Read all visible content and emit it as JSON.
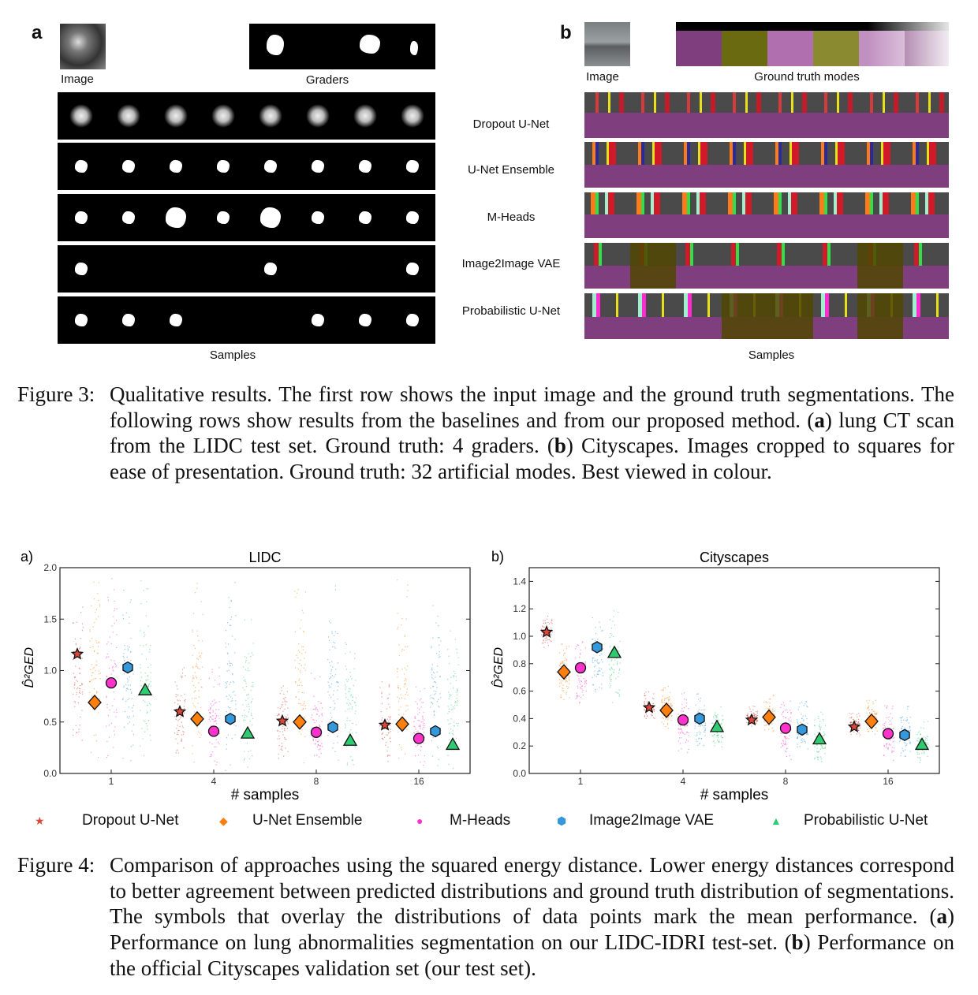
{
  "figure3": {
    "panel_a": {
      "letter": "a",
      "image_label": "Image",
      "graders_label": "Graders",
      "samples_label": "Samples"
    },
    "panel_b": {
      "letter": "b",
      "image_label": "Image",
      "gt_label": "Ground truth modes",
      "samples_label": "Samples"
    },
    "row_labels": [
      "Dropout  U-Net",
      "U-Net Ensemble",
      "M-Heads",
      "Image2Image VAE",
      "Probabilistic U-Net"
    ],
    "caption": {
      "label": "Figure 3:",
      "segments": [
        {
          "t": "Qualitative results. The first row shows the input image and the ground truth segmentations. The following rows show results from the baselines and from our proposed method. ("
        },
        {
          "t": "a",
          "b": true
        },
        {
          "t": ") lung CT scan from the LIDC test set. Ground truth: 4 graders. ("
        },
        {
          "t": "b",
          "b": true
        },
        {
          "t": ") Cityscapes. Images cropped to squares for ease of presentation. Ground truth: 32 artificial modes. Best viewed in colour."
        }
      ]
    }
  },
  "figure4": {
    "legend": [
      {
        "label": "Dropout U-Net",
        "color": "#d9463b",
        "marker": "star"
      },
      {
        "label": "U-Net Ensemble",
        "color": "#ff7f0e",
        "marker": "diamond"
      },
      {
        "label": "M-Heads",
        "color": "#ff33cc",
        "marker": "circle"
      },
      {
        "label": "Image2Image VAE",
        "color": "#3498db",
        "marker": "hexagon"
      },
      {
        "label": "Probabilistic U-Net",
        "color": "#2ecc71",
        "marker": "triangle"
      }
    ],
    "caption": {
      "label": "Figure 4:",
      "segments": [
        {
          "t": "Comparison of approaches using the squared energy distance. Lower energy distances correspond to better agreement between predicted distributions and ground truth distribution of segmentations. The symbols that overlay the distributions of data points mark the mean performance. ("
        },
        {
          "t": "a",
          "b": true
        },
        {
          "t": ") Performance on lung abnormalities segmentation on our LIDC-IDRI test-set. ("
        },
        {
          "t": "b",
          "b": true
        },
        {
          "t": ") Performance on the official Cityscapes validation set (our test set)."
        }
      ]
    }
  },
  "chart_data": [
    {
      "type": "scatter",
      "panel_label": "a)",
      "title": "LIDC",
      "xlabel": "# samples",
      "ylabel": "D̂²GED",
      "categories": [
        "1",
        "4",
        "8",
        "16"
      ],
      "ylim": [
        0,
        2.0
      ],
      "yticks": [
        "0.0",
        "0.5",
        "1.0",
        "1.5",
        "2.0"
      ],
      "series": [
        {
          "name": "Dropout U-Net",
          "means": [
            1.16,
            0.6,
            0.51,
            0.47
          ],
          "spread": [
            [
              0.3,
              1.63
            ],
            [
              0.13,
              1.05
            ],
            [
              0.12,
              0.95
            ],
            [
              0.1,
              0.9
            ]
          ]
        },
        {
          "name": "U-Net Ensemble",
          "means": [
            0.69,
            0.53,
            0.5,
            0.48
          ],
          "spread": [
            [
              0.12,
              1.9
            ],
            [
              0.1,
              1.9
            ],
            [
              0.1,
              1.9
            ],
            [
              0.1,
              1.9
            ]
          ]
        },
        {
          "name": "M-Heads",
          "means": [
            0.88,
            0.41,
            0.4,
            0.34
          ],
          "spread": [
            [
              0.12,
              1.9
            ],
            [
              0.05,
              1.05
            ],
            [
              0.05,
              1.0
            ],
            [
              0.05,
              0.85
            ]
          ]
        },
        {
          "name": "Image2Image VAE",
          "means": [
            1.03,
            0.53,
            0.45,
            0.41
          ],
          "spread": [
            [
              0.12,
              1.93
            ],
            [
              0.03,
              1.9
            ],
            [
              0.03,
              1.9
            ],
            [
              0.03,
              1.7
            ]
          ]
        },
        {
          "name": "Probabilistic U-Net",
          "means": [
            0.81,
            0.39,
            0.32,
            0.28
          ],
          "spread": [
            [
              0.12,
              1.9
            ],
            [
              0.05,
              1.5
            ],
            [
              0.05,
              1.4
            ],
            [
              0.05,
              1.4
            ]
          ]
        }
      ]
    },
    {
      "type": "scatter",
      "panel_label": "b)",
      "title": "Cityscapes",
      "xlabel": "# samples",
      "ylabel": "D̂²GED",
      "categories": [
        "1",
        "4",
        "8",
        "16"
      ],
      "ylim": [
        0,
        1.5
      ],
      "yticks": [
        "0.0",
        "0.2",
        "0.4",
        "0.6",
        "0.8",
        "1.0",
        "1.2",
        "1.4"
      ],
      "series": [
        {
          "name": "Dropout U-Net",
          "means": [
            1.03,
            0.48,
            0.39,
            0.34
          ],
          "spread": [
            [
              0.92,
              1.15
            ],
            [
              0.4,
              0.6
            ],
            [
              0.33,
              0.5
            ],
            [
              0.28,
              0.45
            ]
          ]
        },
        {
          "name": "U-Net Ensemble",
          "means": [
            0.74,
            0.46,
            0.41,
            0.38
          ],
          "spread": [
            [
              0.53,
              0.95
            ],
            [
              0.32,
              0.65
            ],
            [
              0.3,
              0.6
            ],
            [
              0.28,
              0.55
            ]
          ]
        },
        {
          "name": "M-Heads",
          "means": [
            0.77,
            0.39,
            0.33,
            0.29
          ],
          "spread": [
            [
              0.5,
              1.0
            ],
            [
              0.15,
              0.6
            ],
            [
              0.1,
              0.55
            ],
            [
              0.08,
              0.5
            ]
          ]
        },
        {
          "name": "Image2Image VAE",
          "means": [
            0.92,
            0.4,
            0.32,
            0.28
          ],
          "spread": [
            [
              0.6,
              1.2
            ],
            [
              0.2,
              0.6
            ],
            [
              0.15,
              0.55
            ],
            [
              0.12,
              0.5
            ]
          ]
        },
        {
          "name": "Probabilistic U-Net",
          "means": [
            0.88,
            0.34,
            0.25,
            0.21
          ],
          "spread": [
            [
              0.5,
              1.2
            ],
            [
              0.15,
              0.5
            ],
            [
              0.08,
              0.45
            ],
            [
              0.08,
              0.4
            ]
          ]
        }
      ]
    }
  ]
}
